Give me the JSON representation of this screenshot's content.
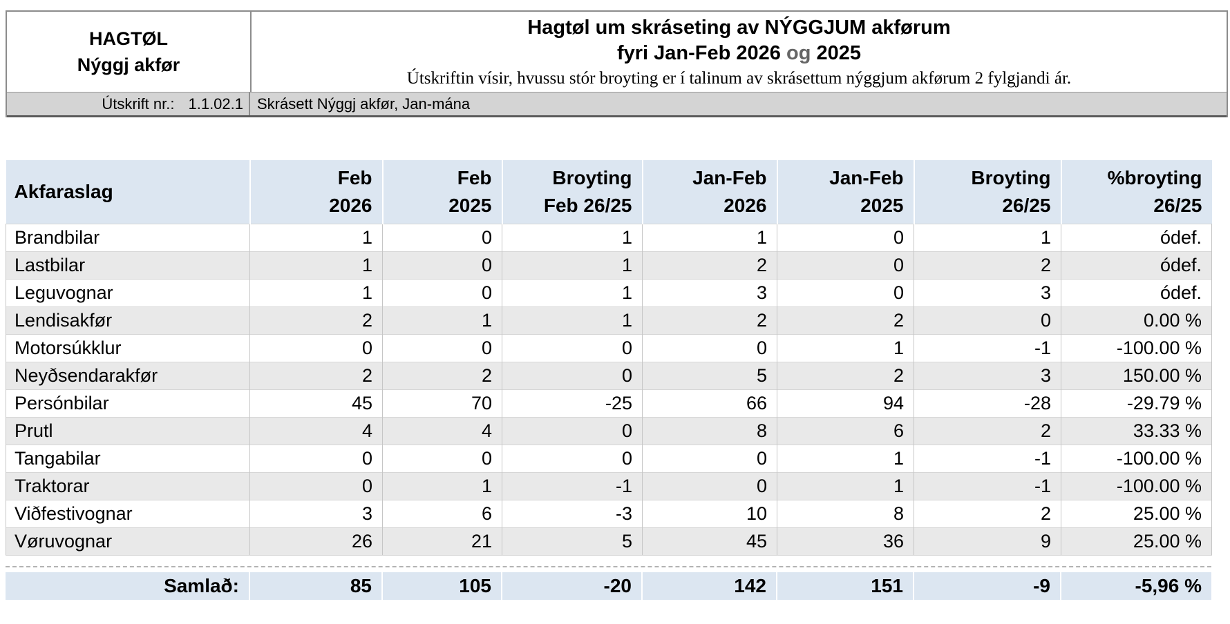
{
  "report": {
    "org_title": "HAGTØL",
    "org_subtitle": "Nýggj akfør",
    "title_line1": "Hagtøl um skráseting av NÝGGJUM akførum",
    "title_line2_prefix": "fyri Jan-Feb 2026 ",
    "title_line2_og": "og",
    "title_line2_suffix": " 2025",
    "description": "Útskriftin vísir, hvussu stór broyting er í talinum av skrásettum nýggjum akførum 2 fylgjandi ár.",
    "print_no_label": "Útskrift nr.:",
    "print_no_value": "1.1.02.1",
    "subject": "Skrásett Nýggj akfør, Jan-mána"
  },
  "table": {
    "columns": [
      {
        "line1": "Akfaraslag",
        "line2": ""
      },
      {
        "line1": "Feb",
        "line2": "2026"
      },
      {
        "line1": "Feb",
        "line2": "2025"
      },
      {
        "line1": "Broyting",
        "line2": "Feb 26/25"
      },
      {
        "line1": "Jan-Feb",
        "line2": "2026"
      },
      {
        "line1": "Jan-Feb",
        "line2": "2025"
      },
      {
        "line1": "Broyting",
        "line2": "26/25"
      },
      {
        "line1": "%broyting",
        "line2": "26/25"
      }
    ],
    "rows": [
      [
        "Brandbilar",
        "1",
        "0",
        "1",
        "1",
        "0",
        "1",
        "ódef."
      ],
      [
        "Lastbilar",
        "1",
        "0",
        "1",
        "2",
        "0",
        "2",
        "ódef."
      ],
      [
        "Leguvognar",
        "1",
        "0",
        "1",
        "3",
        "0",
        "3",
        "ódef."
      ],
      [
        "Lendisakfør",
        "2",
        "1",
        "1",
        "2",
        "2",
        "0",
        "0.00 %"
      ],
      [
        "Motorsúkklur",
        "0",
        "0",
        "0",
        "0",
        "1",
        "-1",
        "-100.00 %"
      ],
      [
        "Neyðsendarakfør",
        "2",
        "2",
        "0",
        "5",
        "2",
        "3",
        "150.00 %"
      ],
      [
        "Persónbilar",
        "45",
        "70",
        "-25",
        "66",
        "94",
        "-28",
        "-29.79 %"
      ],
      [
        "Prutl",
        "4",
        "4",
        "0",
        "8",
        "6",
        "2",
        "33.33 %"
      ],
      [
        "Tangabilar",
        "0",
        "0",
        "0",
        "0",
        "1",
        "-1",
        "-100.00 %"
      ],
      [
        "Traktorar",
        "0",
        "1",
        "-1",
        "0",
        "1",
        "-1",
        "-100.00 %"
      ],
      [
        "Viðfestivognar",
        "3",
        "6",
        "-3",
        "10",
        "8",
        "2",
        "25.00 %"
      ],
      [
        "Vøruvognar",
        "26",
        "21",
        "5",
        "45",
        "36",
        "9",
        "25.00 %"
      ]
    ],
    "total": [
      "Samlað:",
      "85",
      "105",
      "-20",
      "142",
      "151",
      "-9",
      "-5,96 %"
    ]
  },
  "colors": {
    "header_fill": "#dce6f1",
    "band_fill": "#e9e9e9",
    "label_bar_fill": "#d4d4d4",
    "og_color": "#666666"
  }
}
